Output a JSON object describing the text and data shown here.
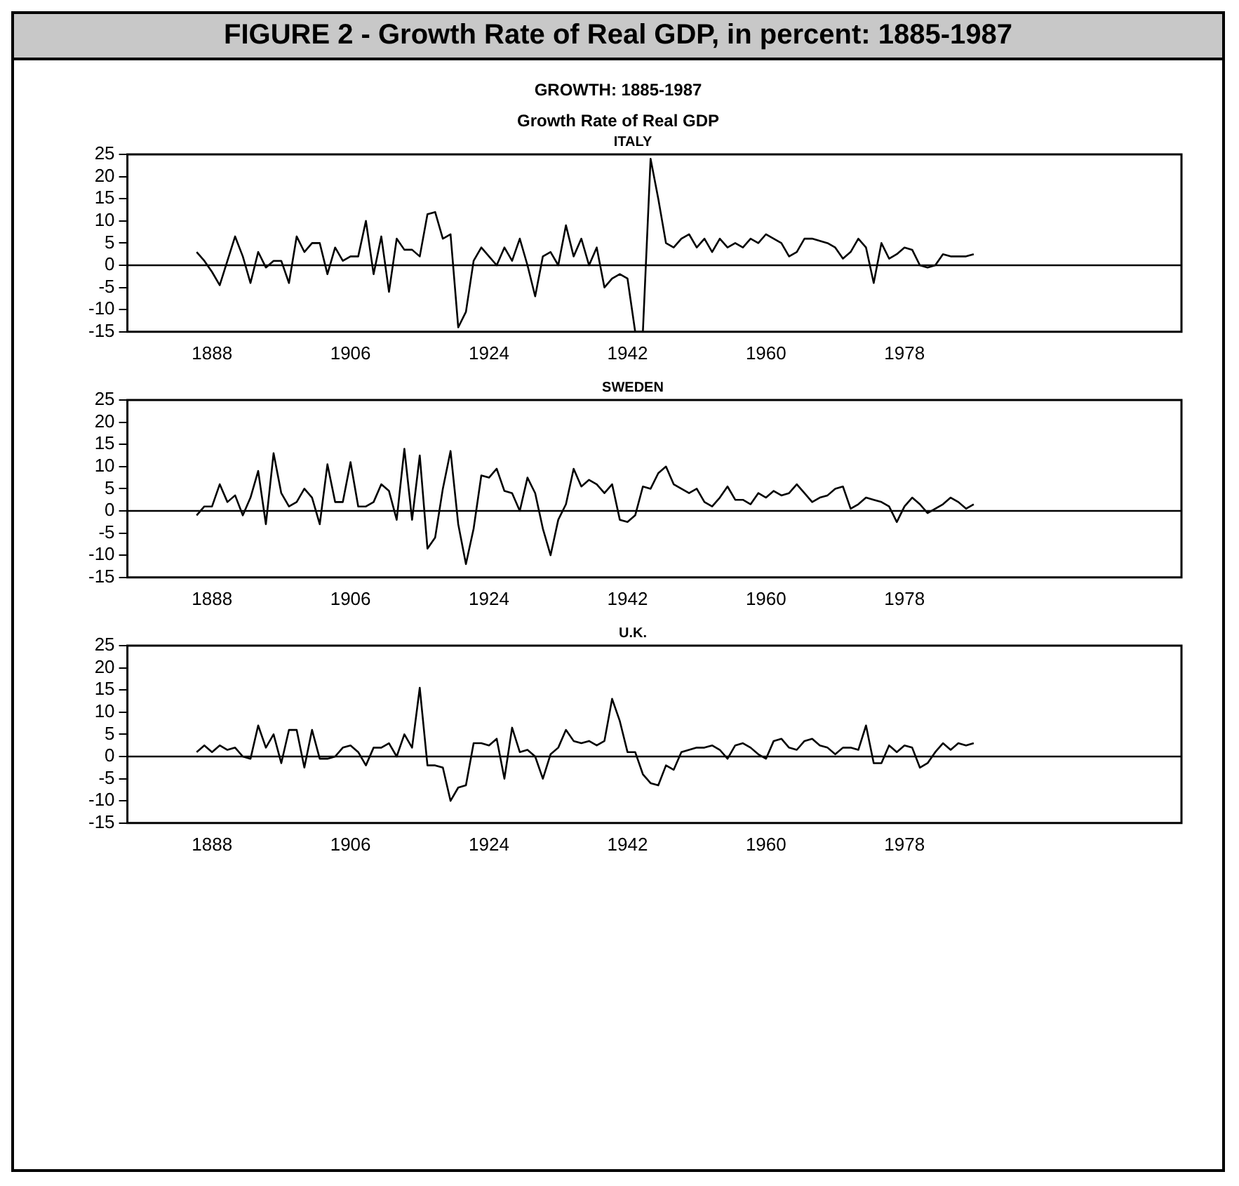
{
  "chart_data": [
    {
      "type": "line",
      "title": "FIGURE 2 - Growth Rate of Real GDP, in percent: 1885-1987",
      "subtitle": "GROWTH: 1885-1987",
      "annotations": [
        "Growth Rate of Real GDP"
      ],
      "xlim": [
        1877,
        2014
      ],
      "xticks": [
        1888,
        1906,
        1924,
        1942,
        1960,
        1978
      ],
      "ylim": [
        -15,
        25
      ],
      "yticks": [
        -15,
        -10,
        -5,
        0,
        5,
        10,
        15,
        20,
        25
      ],
      "ref_lines": [
        {
          "axis": "y",
          "value": 0,
          "color": "#000000"
        }
      ],
      "x": [
        1886,
        1887,
        1888,
        1889,
        1890,
        1891,
        1892,
        1893,
        1894,
        1895,
        1896,
        1897,
        1898,
        1899,
        1900,
        1901,
        1902,
        1903,
        1904,
        1905,
        1906,
        1907,
        1908,
        1909,
        1910,
        1911,
        1912,
        1913,
        1914,
        1915,
        1916,
        1917,
        1918,
        1919,
        1920,
        1921,
        1922,
        1923,
        1924,
        1925,
        1926,
        1927,
        1928,
        1929,
        1930,
        1931,
        1932,
        1933,
        1934,
        1935,
        1936,
        1937,
        1938,
        1939,
        1940,
        1941,
        1942,
        1943,
        1944,
        1945,
        1946,
        1947,
        1948,
        1949,
        1950,
        1951,
        1952,
        1953,
        1954,
        1955,
        1956,
        1957,
        1958,
        1959,
        1960,
        1961,
        1962,
        1963,
        1964,
        1965,
        1966,
        1967,
        1968,
        1969,
        1970,
        1971,
        1972,
        1973,
        1974,
        1975,
        1976,
        1977,
        1978,
        1979,
        1980,
        1981,
        1982,
        1983,
        1984,
        1985,
        1986,
        1987
      ],
      "series": [
        {
          "name": "ITALY",
          "color": "#000000",
          "values": [
            3,
            1,
            -1.5,
            -4.5,
            1,
            6.5,
            2,
            -4,
            3,
            -0.5,
            1,
            1,
            -4,
            6.5,
            3,
            5,
            5,
            -2,
            4,
            1,
            2,
            2,
            10,
            -2,
            6.5,
            -6,
            6,
            3.5,
            3.5,
            2,
            11.5,
            12,
            6,
            7,
            -14,
            -10.5,
            1,
            4,
            2,
            0,
            4,
            1,
            6,
            0,
            -7,
            2,
            3,
            0,
            9,
            2,
            6,
            0,
            4,
            -5,
            -3,
            -2,
            -3,
            -15,
            -15,
            24,
            15,
            5,
            4,
            6,
            7,
            4,
            6,
            3,
            6,
            4,
            5,
            4,
            6,
            5,
            7,
            6,
            5,
            2,
            3,
            6,
            6,
            5.5,
            5,
            4,
            1.5,
            3,
            6,
            4,
            -4,
            5,
            1.5,
            2.5,
            4,
            3.5,
            0,
            -0.5,
            0,
            2.5,
            2,
            2,
            2,
            2.5
          ]
        }
      ]
    },
    {
      "type": "line",
      "xlim": [
        1877,
        2014
      ],
      "xticks": [
        1888,
        1906,
        1924,
        1942,
        1960,
        1978
      ],
      "ylim": [
        -15,
        25
      ],
      "yticks": [
        -15,
        -10,
        -5,
        0,
        5,
        10,
        15,
        20,
        25
      ],
      "ref_lines": [
        {
          "axis": "y",
          "value": 0,
          "color": "#000000"
        }
      ],
      "x": [
        1886,
        1887,
        1888,
        1889,
        1890,
        1891,
        1892,
        1893,
        1894,
        1895,
        1896,
        1897,
        1898,
        1899,
        1900,
        1901,
        1902,
        1903,
        1904,
        1905,
        1906,
        1907,
        1908,
        1909,
        1910,
        1911,
        1912,
        1913,
        1914,
        1915,
        1916,
        1917,
        1918,
        1919,
        1920,
        1921,
        1922,
        1923,
        1924,
        1925,
        1926,
        1927,
        1928,
        1929,
        1930,
        1931,
        1932,
        1933,
        1934,
        1935,
        1936,
        1937,
        1938,
        1939,
        1940,
        1941,
        1942,
        1943,
        1944,
        1945,
        1946,
        1947,
        1948,
        1949,
        1950,
        1951,
        1952,
        1953,
        1954,
        1955,
        1956,
        1957,
        1958,
        1959,
        1960,
        1961,
        1962,
        1963,
        1964,
        1965,
        1966,
        1967,
        1968,
        1969,
        1970,
        1971,
        1972,
        1973,
        1974,
        1975,
        1976,
        1977,
        1978,
        1979,
        1980,
        1981,
        1982,
        1983,
        1984,
        1985,
        1986,
        1987
      ],
      "series": [
        {
          "name": "SWEDEN",
          "color": "#000000",
          "values": [
            -1,
            1,
            1,
            6,
            2,
            3.5,
            -1,
            3,
            9,
            -3,
            13,
            4,
            1,
            2,
            5,
            3,
            -3,
            10.5,
            2,
            2,
            11,
            1,
            1,
            2,
            6,
            4.5,
            -2,
            14,
            -2,
            12.5,
            -8.5,
            -6,
            5,
            13.5,
            -3,
            -12,
            -4,
            8,
            7.5,
            9.5,
            4.5,
            4,
            0,
            7.5,
            4,
            -4,
            -10,
            -2,
            1.5,
            9.5,
            5.5,
            7,
            6,
            4,
            6,
            -2,
            -2.5,
            -1,
            5.5,
            5,
            8.5,
            10,
            6,
            5,
            4,
            5,
            2,
            1,
            3,
            5.5,
            2.5,
            2.5,
            1.5,
            4,
            3,
            4.5,
            3.5,
            4,
            6,
            4,
            2,
            3,
            3.5,
            5,
            5.5,
            0.5,
            1.5,
            3,
            2.5,
            2,
            1,
            -2.5,
            1,
            3,
            1.5,
            -0.5,
            0.5,
            1.5,
            3,
            2,
            0.5,
            1.5
          ]
        }
      ]
    },
    {
      "type": "line",
      "xlim": [
        1877,
        2014
      ],
      "xticks": [
        1888,
        1906,
        1924,
        1942,
        1960,
        1978
      ],
      "ylim": [
        -15,
        25
      ],
      "yticks": [
        -15,
        -10,
        -5,
        0,
        5,
        10,
        15,
        20,
        25
      ],
      "ref_lines": [
        {
          "axis": "y",
          "value": 0,
          "color": "#000000"
        }
      ],
      "x": [
        1886,
        1887,
        1888,
        1889,
        1890,
        1891,
        1892,
        1893,
        1894,
        1895,
        1896,
        1897,
        1898,
        1899,
        1900,
        1901,
        1902,
        1903,
        1904,
        1905,
        1906,
        1907,
        1908,
        1909,
        1910,
        1911,
        1912,
        1913,
        1914,
        1915,
        1916,
        1917,
        1918,
        1919,
        1920,
        1921,
        1922,
        1923,
        1924,
        1925,
        1926,
        1927,
        1928,
        1929,
        1930,
        1931,
        1932,
        1933,
        1934,
        1935,
        1936,
        1937,
        1938,
        1939,
        1940,
        1941,
        1942,
        1943,
        1944,
        1945,
        1946,
        1947,
        1948,
        1949,
        1950,
        1951,
        1952,
        1953,
        1954,
        1955,
        1956,
        1957,
        1958,
        1959,
        1960,
        1961,
        1962,
        1963,
        1964,
        1965,
        1966,
        1967,
        1968,
        1969,
        1970,
        1971,
        1972,
        1973,
        1974,
        1975,
        1976,
        1977,
        1978,
        1979,
        1980,
        1981,
        1982,
        1983,
        1984,
        1985,
        1986,
        1987
      ],
      "series": [
        {
          "name": "U.K.",
          "color": "#000000",
          "values": [
            1,
            2.5,
            1,
            2.5,
            1.5,
            2,
            0,
            -0.5,
            7,
            2,
            5,
            -1.5,
            6,
            6,
            -2.5,
            6,
            -0.5,
            -0.5,
            0,
            2,
            2.5,
            1,
            -2,
            2,
            2,
            3,
            0,
            5,
            2,
            15.5,
            -2,
            -2,
            -2.5,
            -10,
            -7,
            -6.5,
            3,
            3,
            2.5,
            4,
            -5,
            6.5,
            1,
            1.5,
            0,
            -5,
            0.5,
            2,
            6,
            3.5,
            3,
            3.5,
            2.5,
            3.5,
            13,
            8,
            1,
            1,
            -4,
            -6,
            -6.5,
            -2,
            -3,
            1,
            1.5,
            2,
            2,
            2.5,
            1.5,
            -0.5,
            2.5,
            3,
            2,
            0.5,
            -0.5,
            3.5,
            4,
            2,
            1.5,
            3.5,
            4,
            2.5,
            2,
            0.5,
            2,
            2,
            1.5,
            7,
            -1.5,
            -1.5,
            2.5,
            1,
            2.5,
            2,
            -2.5,
            -1.5,
            1,
            3,
            1.5,
            3,
            2.5,
            3
          ]
        }
      ]
    }
  ]
}
